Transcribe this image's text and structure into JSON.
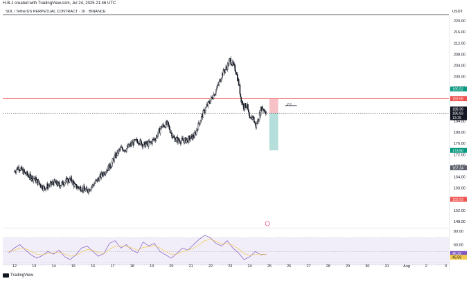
{
  "caption": "H-B-J created with TradingView.com, Jul 24, 2025 21:46 UTC",
  "chart_title": "SOL / TetherUS PERPETUAL CONTRACT · 1h · BINANCE",
  "currency": "USDT",
  "brand": "TradingView",
  "drawing_label": "y-o",
  "colors": {
    "candle": "#131722",
    "red_line": "#ef5350",
    "stop_zone": "#f4b6bd",
    "target_zone": "#a9d8d4",
    "rsi_line": "#7e57c2",
    "rsi_ma": "#f2c94c",
    "rsi_band": "#ede7f6"
  },
  "chart_data": [
    {
      "type": "candlestick",
      "title": "SOL / TetherUS PERPETUAL CONTRACT · 1h · BINANCE",
      "ylim": [
        146,
        222
      ],
      "y_ticks": [
        220.0,
        216.0,
        212.0,
        208.0,
        204.0,
        200.0,
        196.0,
        192.0,
        188.0,
        184.0,
        180.0,
        176.0,
        172.0,
        168.0,
        164.0,
        160.0,
        156.0,
        152.0,
        148.0
      ],
      "x_ticks": [
        "12",
        "13",
        "14",
        "15",
        "16",
        "17",
        "18",
        "19",
        "20",
        "21",
        "22",
        "23",
        "24",
        "25",
        "26",
        "27",
        "28",
        "29",
        "30",
        "31",
        "Aug",
        "2",
        "3"
      ],
      "close_path": [
        [
          12.0,
          166
        ],
        [
          12.2,
          167.5
        ],
        [
          12.5,
          165.5
        ],
        [
          12.8,
          164
        ],
        [
          13.0,
          163.5
        ],
        [
          13.2,
          162
        ],
        [
          13.5,
          160
        ],
        [
          13.8,
          161
        ],
        [
          14.0,
          162
        ],
        [
          14.3,
          161
        ],
        [
          14.6,
          162.5
        ],
        [
          14.9,
          163
        ],
        [
          15.1,
          160.5
        ],
        [
          15.4,
          160
        ],
        [
          15.7,
          159
        ],
        [
          16.0,
          161
        ],
        [
          16.3,
          163.5
        ],
        [
          16.6,
          166
        ],
        [
          16.9,
          168
        ],
        [
          17.1,
          171
        ],
        [
          17.4,
          174
        ],
        [
          17.7,
          174
        ],
        [
          18.0,
          176
        ],
        [
          18.3,
          177
        ],
        [
          18.6,
          175.5
        ],
        [
          18.9,
          176
        ],
        [
          19.2,
          178
        ],
        [
          19.5,
          182
        ],
        [
          19.8,
          183
        ],
        [
          20.1,
          178
        ],
        [
          20.4,
          177
        ],
        [
          20.7,
          177
        ],
        [
          20.9,
          177.5
        ],
        [
          21.2,
          179
        ],
        [
          21.4,
          183
        ],
        [
          21.7,
          188
        ],
        [
          21.95,
          191
        ],
        [
          22.2,
          194
        ],
        [
          22.4,
          197
        ],
        [
          22.6,
          201
        ],
        [
          22.8,
          203
        ],
        [
          23.0,
          206
        ],
        [
          23.15,
          204
        ],
        [
          23.3,
          202
        ],
        [
          23.45,
          197
        ],
        [
          23.55,
          192
        ],
        [
          23.7,
          189
        ],
        [
          23.85,
          190
        ],
        [
          24.0,
          184
        ],
        [
          24.15,
          186
        ],
        [
          24.3,
          182
        ],
        [
          24.45,
          185
        ],
        [
          24.6,
          189
        ],
        [
          24.75,
          188
        ],
        [
          24.85,
          187
        ]
      ],
      "levels": [
        {
          "label": "195.52",
          "value": 195.52,
          "color": "#089981",
          "style": "tag"
        },
        {
          "label": "192.05",
          "value": 192.05,
          "color": "#ef5350",
          "style": "red-line"
        },
        {
          "label": "188.39",
          "value": 188.39,
          "color": "#131722",
          "style": "tag"
        },
        {
          "label": "186.98",
          "value": 186.98,
          "color": "#131722",
          "style": "tag"
        },
        {
          "label": "186.83",
          "value": 186.83,
          "color": "#131722",
          "style": "dashed"
        },
        {
          "label": "13:25",
          "value": 185.2,
          "color": "#131722",
          "style": "time"
        },
        {
          "label": "173.50",
          "value": 173.5,
          "color": "#089981",
          "style": "tag"
        },
        {
          "label": "167.24",
          "value": 167.24,
          "color": "#5d606b",
          "style": "tag"
        },
        {
          "label": "155.93",
          "value": 155.93,
          "color": "#ef5350",
          "style": "tag"
        }
      ],
      "position_tool": {
        "x_start": 25.0,
        "x_end": 25.45,
        "entry": 186.83,
        "stop": 192.05,
        "target": 173.5
      }
    },
    {
      "type": "line",
      "title": "RSI",
      "ylim": [
        35,
        82
      ],
      "y_ticks": [
        80.0,
        60.0,
        40.0
      ],
      "tags": [
        {
          "label": "46.39",
          "color": "#7e57c2"
        },
        {
          "label": "45.59",
          "color": "#f2c94c"
        }
      ],
      "band": [
        30,
        70
      ],
      "series": [
        {
          "values": [
            48,
            55,
            60,
            52,
            45,
            40,
            44,
            50,
            46,
            52,
            42,
            38,
            45,
            55,
            58,
            50,
            43,
            47,
            62,
            66,
            55,
            60,
            52,
            48,
            64,
            58,
            62,
            50,
            45,
            40,
            47,
            55,
            52,
            60,
            68,
            74,
            70,
            62,
            58,
            66,
            55,
            48,
            38,
            42,
            50,
            45,
            46
          ]
        },
        {
          "values": [
            50,
            52,
            55,
            54,
            50,
            46,
            45,
            47,
            48,
            49,
            46,
            43,
            44,
            49,
            53,
            52,
            48,
            47,
            53,
            58,
            58,
            58,
            55,
            52,
            56,
            57,
            59,
            55,
            50,
            46,
            46,
            50,
            52,
            55,
            60,
            66,
            68,
            65,
            61,
            62,
            59,
            54,
            47,
            44,
            46,
            46,
            45.59
          ]
        }
      ]
    }
  ]
}
